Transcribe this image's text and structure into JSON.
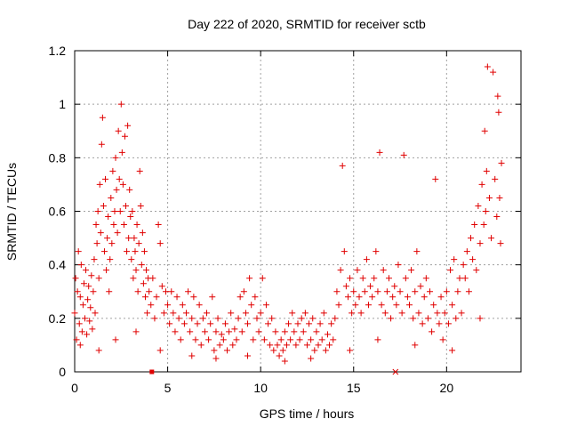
{
  "chart_data": {
    "type": "scatter",
    "title": "Day 222 of 2020, SRMTID for receiver sctb",
    "xlabel": "GPS time / hours",
    "ylabel": "SRMTID / TECUs",
    "xlim": [
      0,
      24
    ],
    "ylim": [
      0,
      1.2
    ],
    "xticks": [
      0,
      5,
      10,
      15,
      20
    ],
    "xtick_labels": [
      "0",
      "5",
      "10",
      "15",
      "20"
    ],
    "yticks": [
      0,
      0.2,
      0.4,
      0.6,
      0.8,
      1,
      1.2
    ],
    "ytick_labels": [
      "0",
      "0.2",
      "0.4",
      "0.6",
      "0.8",
      "1",
      "1.2"
    ],
    "grid": true,
    "marker": "+",
    "color": "#e00000",
    "series": [
      {
        "name": "sctb",
        "points": [
          [
            0.0,
            0.22
          ],
          [
            0.05,
            0.35
          ],
          [
            0.1,
            0.12
          ],
          [
            0.15,
            0.3
          ],
          [
            0.2,
            0.45
          ],
          [
            0.25,
            0.18
          ],
          [
            0.3,
            0.28
          ],
          [
            0.35,
            0.4
          ],
          [
            0.4,
            0.15
          ],
          [
            0.45,
            0.25
          ],
          [
            0.5,
            0.33
          ],
          [
            0.55,
            0.2
          ],
          [
            0.6,
            0.38
          ],
          [
            0.65,
            0.14
          ],
          [
            0.7,
            0.27
          ],
          [
            0.75,
            0.32
          ],
          [
            0.8,
            0.19
          ],
          [
            0.85,
            0.24
          ],
          [
            0.9,
            0.36
          ],
          [
            0.95,
            0.16
          ],
          [
            1.0,
            0.3
          ],
          [
            1.05,
            0.42
          ],
          [
            1.1,
            0.22
          ],
          [
            1.15,
            0.55
          ],
          [
            1.2,
            0.48
          ],
          [
            1.25,
            0.6
          ],
          [
            1.3,
            0.35
          ],
          [
            1.35,
            0.7
          ],
          [
            1.4,
            0.52
          ],
          [
            1.45,
            0.85
          ],
          [
            1.5,
            0.95
          ],
          [
            1.55,
            0.62
          ],
          [
            1.6,
            0.45
          ],
          [
            1.65,
            0.72
          ],
          [
            1.7,
            0.38
          ],
          [
            1.75,
            0.5
          ],
          [
            1.8,
            0.58
          ],
          [
            1.85,
            0.3
          ],
          [
            1.9,
            0.42
          ],
          [
            1.95,
            0.65
          ],
          [
            2.0,
            0.48
          ],
          [
            2.05,
            0.75
          ],
          [
            2.1,
            0.55
          ],
          [
            2.15,
            0.6
          ],
          [
            2.2,
            0.8
          ],
          [
            2.25,
            0.68
          ],
          [
            2.3,
            0.52
          ],
          [
            2.35,
            0.9
          ],
          [
            2.4,
            0.72
          ],
          [
            2.45,
            0.6
          ],
          [
            2.5,
            1.0
          ],
          [
            2.55,
            0.82
          ],
          [
            2.6,
            0.7
          ],
          [
            2.65,
            0.55
          ],
          [
            2.7,
            0.88
          ],
          [
            2.75,
            0.62
          ],
          [
            2.8,
            0.45
          ],
          [
            2.85,
            0.92
          ],
          [
            2.9,
            0.5
          ],
          [
            2.95,
            0.68
          ],
          [
            3.0,
            0.58
          ],
          [
            3.05,
            0.42
          ],
          [
            3.1,
            0.6
          ],
          [
            3.15,
            0.35
          ],
          [
            3.2,
            0.5
          ],
          [
            3.25,
            0.45
          ],
          [
            3.3,
            0.38
          ],
          [
            3.35,
            0.55
          ],
          [
            3.4,
            0.3
          ],
          [
            3.45,
            0.48
          ],
          [
            3.5,
            0.75
          ],
          [
            3.55,
            0.62
          ],
          [
            3.6,
            0.4
          ],
          [
            3.65,
            0.52
          ],
          [
            3.7,
            0.33
          ],
          [
            3.75,
            0.45
          ],
          [
            3.8,
            0.28
          ],
          [
            3.85,
            0.38
          ],
          [
            3.9,
            0.22
          ],
          [
            3.95,
            0.35
          ],
          [
            4.0,
            0.3
          ],
          [
            4.1,
            0.25
          ],
          [
            4.2,
            0.35
          ],
          [
            4.3,
            0.2
          ],
          [
            4.4,
            0.28
          ],
          [
            4.5,
            0.55
          ],
          [
            4.6,
            0.48
          ],
          [
            4.7,
            0.32
          ],
          [
            4.8,
            0.22
          ],
          [
            4.9,
            0.3
          ],
          [
            5.0,
            0.25
          ],
          [
            5.1,
            0.18
          ],
          [
            5.2,
            0.3
          ],
          [
            5.3,
            0.22
          ],
          [
            5.4,
            0.15
          ],
          [
            5.5,
            0.28
          ],
          [
            5.6,
            0.2
          ],
          [
            5.7,
            0.12
          ],
          [
            5.8,
            0.25
          ],
          [
            5.9,
            0.18
          ],
          [
            6.0,
            0.22
          ],
          [
            6.1,
            0.3
          ],
          [
            6.2,
            0.15
          ],
          [
            6.3,
            0.2
          ],
          [
            6.4,
            0.28
          ],
          [
            6.5,
            0.12
          ],
          [
            6.6,
            0.18
          ],
          [
            6.7,
            0.25
          ],
          [
            6.8,
            0.1
          ],
          [
            6.9,
            0.2
          ],
          [
            7.0,
            0.15
          ],
          [
            7.1,
            0.22
          ],
          [
            7.2,
            0.12
          ],
          [
            7.3,
            0.18
          ],
          [
            7.4,
            0.28
          ],
          [
            7.5,
            0.08
          ],
          [
            7.6,
            0.15
          ],
          [
            7.7,
            0.2
          ],
          [
            7.8,
            0.1
          ],
          [
            7.9,
            0.14
          ],
          [
            8.0,
            0.12
          ],
          [
            8.1,
            0.18
          ],
          [
            8.2,
            0.08
          ],
          [
            8.3,
            0.15
          ],
          [
            8.4,
            0.22
          ],
          [
            8.5,
            0.1
          ],
          [
            8.6,
            0.16
          ],
          [
            8.7,
            0.12
          ],
          [
            8.8,
            0.2
          ],
          [
            8.9,
            0.28
          ],
          [
            9.0,
            0.15
          ],
          [
            9.1,
            0.3
          ],
          [
            9.2,
            0.22
          ],
          [
            9.3,
            0.18
          ],
          [
            9.4,
            0.35
          ],
          [
            9.5,
            0.25
          ],
          [
            9.6,
            0.12
          ],
          [
            9.7,
            0.28
          ],
          [
            9.8,
            0.2
          ],
          [
            9.9,
            0.15
          ],
          [
            10.0,
            0.22
          ],
          [
            10.1,
            0.35
          ],
          [
            10.2,
            0.12
          ],
          [
            10.3,
            0.25
          ],
          [
            10.4,
            0.18
          ],
          [
            10.5,
            0.1
          ],
          [
            10.6,
            0.2
          ],
          [
            10.7,
            0.08
          ],
          [
            10.8,
            0.15
          ],
          [
            10.9,
            0.1
          ],
          [
            11.0,
            0.06
          ],
          [
            11.1,
            0.12
          ],
          [
            11.2,
            0.08
          ],
          [
            11.3,
            0.15
          ],
          [
            11.4,
            0.1
          ],
          [
            11.5,
            0.18
          ],
          [
            11.6,
            0.12
          ],
          [
            11.7,
            0.22
          ],
          [
            11.8,
            0.15
          ],
          [
            11.9,
            0.1
          ],
          [
            12.0,
            0.18
          ],
          [
            12.1,
            0.12
          ],
          [
            12.2,
            0.2
          ],
          [
            12.3,
            0.15
          ],
          [
            12.4,
            0.22
          ],
          [
            12.5,
            0.1
          ],
          [
            12.6,
            0.18
          ],
          [
            12.7,
            0.12
          ],
          [
            12.8,
            0.2
          ],
          [
            12.9,
            0.08
          ],
          [
            13.0,
            0.15
          ],
          [
            13.1,
            0.1
          ],
          [
            13.2,
            0.18
          ],
          [
            13.3,
            0.12
          ],
          [
            13.4,
            0.22
          ],
          [
            13.5,
            0.08
          ],
          [
            13.6,
            0.14
          ],
          [
            13.7,
            0.1
          ],
          [
            13.8,
            0.18
          ],
          [
            13.9,
            0.12
          ],
          [
            14.0,
            0.2
          ],
          [
            14.1,
            0.3
          ],
          [
            14.2,
            0.25
          ],
          [
            14.3,
            0.38
          ],
          [
            14.4,
            0.77
          ],
          [
            14.5,
            0.45
          ],
          [
            14.6,
            0.32
          ],
          [
            14.7,
            0.28
          ],
          [
            14.8,
            0.35
          ],
          [
            14.9,
            0.22
          ],
          [
            15.0,
            0.3
          ],
          [
            15.1,
            0.25
          ],
          [
            15.2,
            0.38
          ],
          [
            15.3,
            0.28
          ],
          [
            15.4,
            0.22
          ],
          [
            15.5,
            0.35
          ],
          [
            15.6,
            0.3
          ],
          [
            15.7,
            0.42
          ],
          [
            15.8,
            0.25
          ],
          [
            15.9,
            0.32
          ],
          [
            16.0,
            0.28
          ],
          [
            16.1,
            0.35
          ],
          [
            16.2,
            0.45
          ],
          [
            16.3,
            0.3
          ],
          [
            16.4,
            0.82
          ],
          [
            16.5,
            0.25
          ],
          [
            16.6,
            0.38
          ],
          [
            16.7,
            0.22
          ],
          [
            16.8,
            0.3
          ],
          [
            16.9,
            0.35
          ],
          [
            17.0,
            0.2
          ],
          [
            17.1,
            0.28
          ],
          [
            17.2,
            0.32
          ],
          [
            17.3,
            0.25
          ],
          [
            17.4,
            0.4
          ],
          [
            17.5,
            0.3
          ],
          [
            17.6,
            0.22
          ],
          [
            17.7,
            0.81
          ],
          [
            17.8,
            0.35
          ],
          [
            17.9,
            0.28
          ],
          [
            18.0,
            0.25
          ],
          [
            18.1,
            0.38
          ],
          [
            18.2,
            0.2
          ],
          [
            18.3,
            0.3
          ],
          [
            18.4,
            0.45
          ],
          [
            18.5,
            0.22
          ],
          [
            18.6,
            0.32
          ],
          [
            18.7,
            0.18
          ],
          [
            18.8,
            0.28
          ],
          [
            18.9,
            0.35
          ],
          [
            19.0,
            0.2
          ],
          [
            19.1,
            0.3
          ],
          [
            19.2,
            0.15
          ],
          [
            19.3,
            0.25
          ],
          [
            19.4,
            0.72
          ],
          [
            19.5,
            0.22
          ],
          [
            19.6,
            0.18
          ],
          [
            19.7,
            0.28
          ],
          [
            19.8,
            0.12
          ],
          [
            19.9,
            0.22
          ],
          [
            20.0,
            0.3
          ],
          [
            20.1,
            0.18
          ],
          [
            20.2,
            0.38
          ],
          [
            20.3,
            0.25
          ],
          [
            20.4,
            0.42
          ],
          [
            20.5,
            0.2
          ],
          [
            20.6,
            0.3
          ],
          [
            20.7,
            0.35
          ],
          [
            20.8,
            0.22
          ],
          [
            20.9,
            0.4
          ],
          [
            21.0,
            0.35
          ],
          [
            21.1,
            0.45
          ],
          [
            21.2,
            0.3
          ],
          [
            21.3,
            0.5
          ],
          [
            21.4,
            0.42
          ],
          [
            21.5,
            0.55
          ],
          [
            21.6,
            0.38
          ],
          [
            21.7,
            0.62
          ],
          [
            21.8,
            0.48
          ],
          [
            21.9,
            0.7
          ],
          [
            22.0,
            0.55
          ],
          [
            22.05,
            0.9
          ],
          [
            22.1,
            0.6
          ],
          [
            22.15,
            0.75
          ],
          [
            22.2,
            1.14
          ],
          [
            22.3,
            0.65
          ],
          [
            22.4,
            0.5
          ],
          [
            22.5,
            1.12
          ],
          [
            22.6,
            0.72
          ],
          [
            22.7,
            0.58
          ],
          [
            22.75,
            1.03
          ],
          [
            22.8,
            0.97
          ],
          [
            22.85,
            0.65
          ],
          [
            22.9,
            0.48
          ],
          [
            22.95,
            0.78
          ],
          [
            0.3,
            0.1
          ],
          [
            1.3,
            0.08
          ],
          [
            2.2,
            0.12
          ],
          [
            3.3,
            0.15
          ],
          [
            4.6,
            0.08
          ],
          [
            6.3,
            0.06
          ],
          [
            7.6,
            0.05
          ],
          [
            9.3,
            0.06
          ],
          [
            11.3,
            0.04
          ],
          [
            12.7,
            0.05
          ],
          [
            14.8,
            0.08
          ],
          [
            16.3,
            0.12
          ],
          [
            18.3,
            0.1
          ],
          [
            20.3,
            0.08
          ],
          [
            21.8,
            0.2
          ]
        ]
      }
    ],
    "special_markers": [
      {
        "x": 4.15,
        "y": 0.0,
        "shape": "square"
      },
      {
        "x": 17.25,
        "y": 0.0,
        "shape": "cross"
      }
    ]
  }
}
